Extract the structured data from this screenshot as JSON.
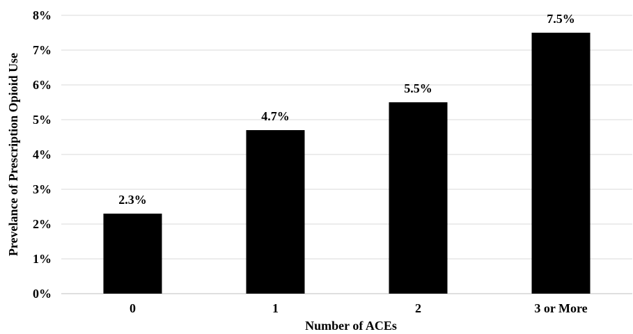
{
  "chart_data": {
    "type": "bar",
    "categories": [
      "0",
      "1",
      "2",
      "3 or More"
    ],
    "values": [
      2.3,
      4.7,
      5.5,
      7.5
    ],
    "data_labels": [
      "2.3%",
      "4.7%",
      "5.5%",
      "7.5%"
    ],
    "xlabel": "Number of ACEs",
    "ylabel": "Prevelance of Prescription Opioid Use",
    "ylim": [
      0,
      8
    ],
    "yticks": [
      0,
      1,
      2,
      3,
      4,
      5,
      6,
      7,
      8
    ],
    "ytick_labels": [
      "0%",
      "1%",
      "2%",
      "3%",
      "4%",
      "5%",
      "6%",
      "7%",
      "8%"
    ],
    "grid": true,
    "bar_color": "#000000",
    "grid_color": "#d9d9d9"
  }
}
